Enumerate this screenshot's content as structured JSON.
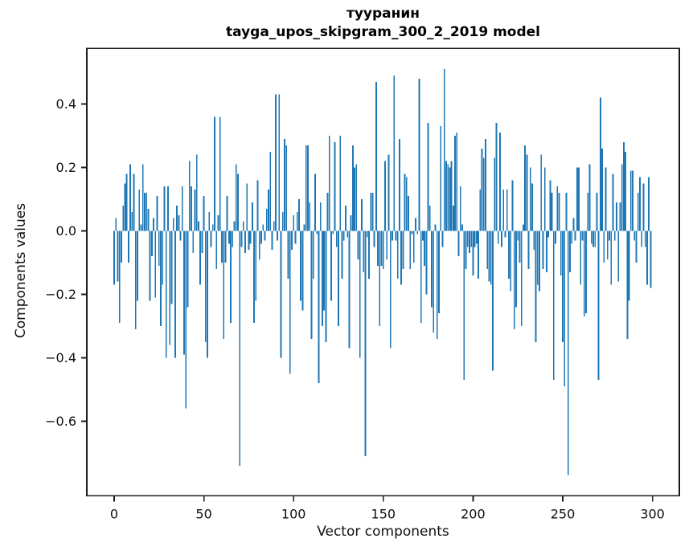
{
  "figure": {
    "title_line1": "тууранин",
    "title_line2": "tayga_upos_skipgram_300_2_2019 model",
    "xlabel": "Vector components",
    "ylabel": "Components values"
  },
  "chart_data": {
    "type": "bar",
    "title": "тууранин\ntayga_upos_skipgram_300_2_2019 model",
    "xlabel": "Vector components",
    "ylabel": "Components values",
    "bar_color": "#1f77b4",
    "axis_color": "#1c1c1c",
    "grid": false,
    "legend_position": "none",
    "n_components": 300,
    "xticks": [
      0,
      50,
      100,
      150,
      200,
      250,
      300
    ],
    "xtick_labels": [
      "0",
      "50",
      "100",
      "150",
      "200",
      "250",
      "300"
    ],
    "yticks": [
      0.4,
      0.2,
      0.0,
      -0.2,
      -0.4,
      -0.6
    ],
    "ytick_labels": [
      "0.4",
      "0.2",
      "0.0",
      "−0.2",
      "−0.4",
      "−0.6"
    ],
    "xlim": [
      -15.9,
      314.9
    ],
    "ylim": [
      -0.835,
      0.574
    ],
    "values": [
      -0.17,
      0.04,
      -0.16,
      -0.29,
      -0.1,
      0.08,
      0.15,
      0.18,
      -0.1,
      0.21,
      0.06,
      0.18,
      -0.31,
      -0.22,
      0.13,
      0.02,
      0.21,
      0.12,
      0.12,
      0.07,
      -0.22,
      -0.08,
      0.04,
      -0.21,
      0.11,
      -0.11,
      -0.3,
      -0.17,
      0.14,
      -0.4,
      0.14,
      -0.36,
      -0.23,
      0.04,
      -0.4,
      0.08,
      0.05,
      -0.03,
      0.14,
      -0.39,
      -0.56,
      -0.24,
      0.22,
      0.14,
      -0.07,
      0.13,
      0.24,
      0.03,
      -0.17,
      -0.07,
      0.11,
      -0.35,
      -0.4,
      0.06,
      -0.05,
      0.02,
      0.36,
      -0.12,
      0.05,
      0.36,
      -0.1,
      -0.34,
      -0.1,
      0.11,
      -0.04,
      -0.29,
      -0.05,
      0.03,
      0.21,
      0.18,
      -0.74,
      -0.05,
      0.03,
      -0.07,
      0.15,
      -0.06,
      -0.04,
      0.09,
      -0.29,
      -0.22,
      0.16,
      -0.09,
      -0.04,
      0.02,
      -0.03,
      0.07,
      0.13,
      0.25,
      -0.06,
      0.03,
      0.43,
      -0.03,
      0.43,
      -0.4,
      0.06,
      0.29,
      0.27,
      -0.15,
      -0.45,
      -0.06,
      0.05,
      -0.04,
      0.06,
      0.1,
      -0.22,
      -0.25,
      0.02,
      0.27,
      0.27,
      0.09,
      -0.34,
      -0.15,
      0.18,
      -0.01,
      -0.48,
      0.09,
      -0.3,
      -0.25,
      -0.35,
      0.12,
      0.3,
      -0.22,
      -0.01,
      0.28,
      -0.05,
      -0.3,
      0.3,
      -0.15,
      -0.03,
      0.08,
      -0.02,
      -0.37,
      0.05,
      0.27,
      0.2,
      0.21,
      -0.09,
      -0.4,
      0.1,
      -0.13,
      -0.71,
      -0.02,
      -0.15,
      0.12,
      0.12,
      -0.05,
      0.47,
      -0.11,
      -0.3,
      -0.11,
      -0.12,
      0.22,
      -0.09,
      0.24,
      -0.37,
      -0.03,
      0.49,
      -0.03,
      -0.15,
      0.29,
      -0.17,
      -0.12,
      0.18,
      0.17,
      0.11,
      -0.12,
      -0.01,
      -0.1,
      0.04,
      -0.01,
      0.48,
      -0.29,
      -0.03,
      -0.11,
      -0.2,
      0.34,
      0.08,
      -0.24,
      -0.32,
      0.02,
      -0.34,
      -0.26,
      0.33,
      -0.05,
      0.51,
      0.22,
      0.21,
      0.2,
      0.22,
      0.08,
      0.3,
      0.31,
      -0.08,
      0.14,
      0.02,
      -0.47,
      -0.12,
      -0.05,
      -0.07,
      -0.05,
      -0.14,
      -0.05,
      -0.04,
      -0.15,
      0.13,
      0.26,
      0.23,
      0.29,
      -0.12,
      -0.16,
      -0.17,
      -0.44,
      0.23,
      0.34,
      -0.04,
      0.31,
      -0.05,
      0.13,
      -0.02,
      0.13,
      -0.15,
      -0.19,
      0.16,
      -0.31,
      -0.24,
      -0.03,
      -0.1,
      -0.3,
      0.02,
      0.27,
      0.24,
      -0.12,
      0.2,
      0.15,
      -0.06,
      -0.35,
      -0.17,
      -0.19,
      0.24,
      -0.12,
      0.2,
      -0.13,
      -0.02,
      0.16,
      0.12,
      -0.47,
      -0.04,
      0.14,
      0.12,
      -0.14,
      -0.35,
      -0.49,
      0.12,
      -0.77,
      -0.13,
      -0.04,
      0.04,
      -0.03,
      0.2,
      0.2,
      -0.17,
      -0.03,
      -0.27,
      -0.26,
      0.12,
      0.21,
      -0.04,
      -0.05,
      -0.05,
      0.12,
      -0.47,
      0.42,
      0.26,
      -0.1,
      0.2,
      -0.09,
      -0.03,
      -0.17,
      0.18,
      -0.03,
      0.09,
      -0.16,
      0.09,
      0.21,
      0.28,
      0.25,
      -0.34,
      -0.22,
      0.19,
      0.19,
      -0.03,
      -0.1,
      0.12,
      0.17,
      -0.05,
      0.15,
      -0.05,
      -0.17,
      0.17,
      -0.18
    ]
  }
}
